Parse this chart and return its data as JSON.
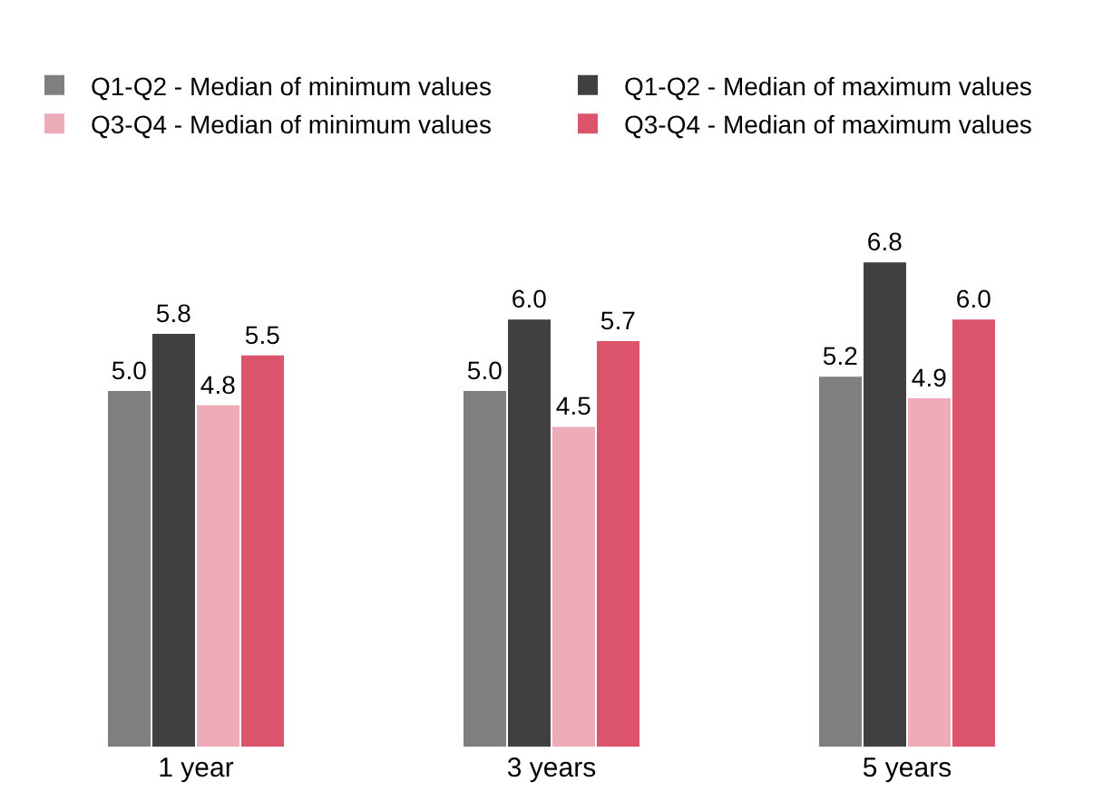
{
  "chart_data": {
    "type": "bar",
    "categories": [
      "1 year",
      "3 years",
      "5 years"
    ],
    "series": [
      {
        "name": "Q1-Q2 - Median of minimum values",
        "color": "#7f7f7f",
        "values": [
          5.0,
          5.0,
          5.2
        ],
        "value_labels": [
          "5.0",
          "5.0",
          "5.2"
        ]
      },
      {
        "name": "Q1-Q2 - Median of maximum values",
        "color": "#404040",
        "values": [
          5.8,
          6.0,
          6.8
        ],
        "value_labels": [
          "5.8",
          "6.0",
          "6.8"
        ]
      },
      {
        "name": "Q3-Q4 - Median of minimum values",
        "color": "#eeabb8",
        "values": [
          4.8,
          4.5,
          4.9
        ],
        "value_labels": [
          "4.8",
          "4.5",
          "4.9"
        ]
      },
      {
        "name": "Q3-Q4 - Median of maximum values",
        "color": "#dc546b",
        "values": [
          5.5,
          5.7,
          6.0
        ],
        "value_labels": [
          "5.5",
          "5.7",
          "6.0"
        ]
      }
    ],
    "tick_labels": "x",
    "grid": false,
    "legend": "top"
  }
}
